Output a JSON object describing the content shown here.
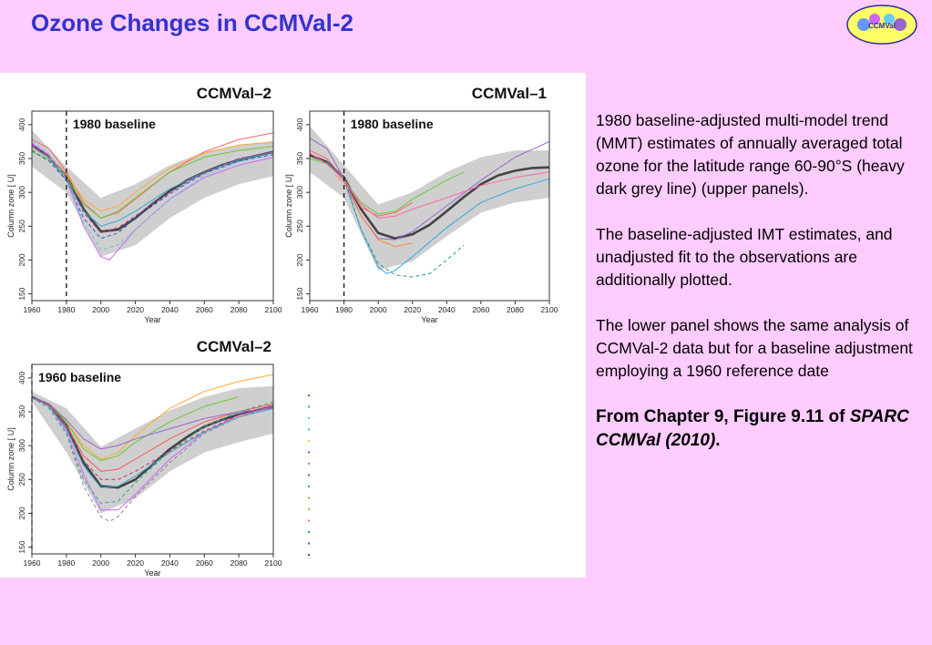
{
  "title": "Ozone Changes in CCMVal-2",
  "logo": {
    "text": "CCMVal",
    "icon": "ccmval-logo-icon",
    "color": "#2a2aa6",
    "fill": "#ffff66"
  },
  "description": {
    "p1": "1980 baseline-adjusted multi-model trend (MMT) estimates of annually averaged total ozone for the latitude range 60-90°S (heavy dark grey line) (upper panels).",
    "p2": "The baseline-adjusted IMT estimates, and unadjusted fit to the observations are additionally plotted.",
    "p3": "The lower panel shows the same analysis of CCMVal-2 data but for a baseline adjustment employing a 1960 reference date",
    "source_prefix": "From Chapter 9, Figure 9.11 of ",
    "source_ref": "SPARC CCMVal (2010)",
    "source_suffix": "."
  },
  "chart_data": [
    {
      "type": "line",
      "title": "CCMVal–2",
      "annotation": "1980 baseline",
      "baseline_year": 1980,
      "xlabel": "Year",
      "ylabel": "Column   zone [  U]",
      "xlim": [
        1960,
        2100
      ],
      "ylim": [
        140,
        420
      ],
      "xticks": [
        1960,
        1980,
        2000,
        2020,
        2040,
        2060,
        2080,
        2100
      ],
      "yticks": [
        150,
        200,
        250,
        300,
        350,
        400
      ],
      "band": {
        "x": [
          1960,
          1980,
          2000,
          2020,
          2040,
          2060,
          2080,
          2100
        ],
        "upper": [
          392,
          338,
          292,
          312,
          340,
          360,
          370,
          376
        ],
        "lower": [
          338,
          300,
          205,
          222,
          262,
          292,
          312,
          324
        ]
      },
      "series": [
        {
          "name": "MMT",
          "color": "#444444",
          "width": 2.6,
          "x": [
            1960,
            1970,
            1980,
            1990,
            2000,
            2010,
            2020,
            2030,
            2040,
            2050,
            2060,
            2070,
            2080,
            2090,
            2100
          ],
          "y": [
            370,
            352,
            325,
            275,
            242,
            245,
            262,
            283,
            302,
            318,
            330,
            340,
            348,
            354,
            360
          ]
        },
        {
          "color": "#ff6666",
          "width": 1,
          "x": [
            1960,
            1970,
            1980,
            1990,
            2000,
            2010,
            2020,
            2040,
            2060,
            2080,
            2100
          ],
          "y": [
            378,
            365,
            330,
            285,
            262,
            270,
            290,
            330,
            360,
            378,
            388
          ]
        },
        {
          "color": "#cc66ff",
          "width": 1,
          "x": [
            1960,
            1970,
            1980,
            1990,
            2000,
            2005,
            2010,
            2020,
            2040,
            2060,
            2080,
            2100
          ],
          "y": [
            372,
            355,
            320,
            250,
            205,
            200,
            215,
            245,
            290,
            322,
            340,
            352
          ]
        },
        {
          "color": "#66cc33",
          "width": 1,
          "x": [
            1960,
            1970,
            1980,
            1990,
            2000,
            2010,
            2020,
            2040,
            2060,
            2080,
            2100
          ],
          "y": [
            360,
            348,
            322,
            282,
            262,
            272,
            292,
            330,
            352,
            362,
            368
          ]
        },
        {
          "color": "#ffaa33",
          "width": 1,
          "x": [
            1960,
            1970,
            1980,
            1990,
            2000,
            2010,
            2020,
            2040,
            2060,
            2080,
            2100
          ],
          "y": [
            365,
            352,
            326,
            290,
            272,
            280,
            300,
            336,
            358,
            370,
            374
          ]
        },
        {
          "color": "#33aacc",
          "width": 1,
          "x": [
            1960,
            1970,
            1980,
            1990,
            2000,
            2010,
            2020,
            2040,
            2060,
            2080,
            2100
          ],
          "y": [
            368,
            350,
            318,
            272,
            250,
            258,
            272,
            305,
            330,
            348,
            360
          ]
        },
        {
          "color": "#3355cc",
          "width": 1,
          "dash": "4,3",
          "x": [
            1960,
            1970,
            1980,
            1990,
            2000,
            2010,
            2020,
            2040,
            2060,
            2080,
            2100
          ],
          "y": [
            362,
            346,
            318,
            262,
            232,
            240,
            262,
            298,
            328,
            346,
            356
          ]
        },
        {
          "color": "#66cccc",
          "width": 1,
          "dash": "4,3",
          "x": [
            1960,
            1970,
            1980,
            1990,
            2000,
            2010,
            2020,
            2040,
            2060,
            2080,
            2100
          ],
          "y": [
            375,
            356,
            322,
            255,
            215,
            222,
            245,
            290,
            325,
            345,
            358
          ]
        },
        {
          "color": "#cc3399",
          "width": 1,
          "dash": "4,3",
          "x": [
            1960,
            1970,
            1980,
            1990,
            2000,
            2010,
            2020,
            2040,
            2060,
            2080,
            2100
          ],
          "y": [
            370,
            352,
            322,
            270,
            240,
            248,
            265,
            300,
            330,
            350,
            360
          ]
        }
      ]
    },
    {
      "type": "line",
      "title": "CCMVal–1",
      "annotation": "1980 baseline",
      "baseline_year": 1980,
      "xlabel": "Year",
      "ylabel": "Column   zone [  U]",
      "xlim": [
        1960,
        2100
      ],
      "ylim": [
        140,
        420
      ],
      "xticks": [
        1960,
        1980,
        2000,
        2020,
        2040,
        2060,
        2080,
        2100
      ],
      "yticks": [
        150,
        200,
        250,
        300,
        350,
        400
      ],
      "band": {
        "x": [
          1960,
          1980,
          2000,
          2020,
          2040,
          2060,
          2080,
          2100
        ],
        "upper": [
          398,
          340,
          282,
          300,
          330,
          352,
          362,
          362
        ],
        "lower": [
          330,
          292,
          185,
          198,
          235,
          270,
          285,
          292
        ]
      },
      "series": [
        {
          "name": "MMT",
          "color": "#444444",
          "width": 2.6,
          "x": [
            1960,
            1970,
            1980,
            1990,
            2000,
            2010,
            2020,
            2030,
            2040,
            2050,
            2060,
            2070,
            2080,
            2090,
            2100
          ],
          "y": [
            355,
            345,
            322,
            275,
            240,
            232,
            238,
            252,
            272,
            293,
            312,
            325,
            332,
            336,
            337
          ]
        },
        {
          "color": "#ff6666",
          "width": 1,
          "x": [
            1960,
            1970,
            1980,
            1990,
            2000,
            2010,
            2020
          ],
          "y": [
            362,
            350,
            320,
            278,
            265,
            270,
            285
          ]
        },
        {
          "color": "#9966cc",
          "width": 1,
          "x": [
            1960,
            1970,
            1980,
            1990,
            2000,
            2010,
            2020,
            2040,
            2060,
            2080,
            2100
          ],
          "y": [
            380,
            365,
            320,
            265,
            232,
            230,
            242,
            280,
            318,
            352,
            375
          ]
        },
        {
          "color": "#66cc33",
          "width": 1,
          "x": [
            1960,
            1970,
            1980,
            1990,
            2000,
            2010,
            2020,
            2040,
            2050
          ],
          "y": [
            350,
            342,
            318,
            285,
            268,
            272,
            290,
            318,
            330
          ]
        },
        {
          "color": "#33aadd",
          "width": 1,
          "x": [
            1970,
            1980,
            1990,
            2000,
            2005,
            2010,
            2020,
            2040,
            2060,
            2080,
            2100
          ],
          "y": [
            345,
            318,
            245,
            190,
            180,
            185,
            205,
            248,
            285,
            305,
            320
          ]
        },
        {
          "color": "#ff8844",
          "width": 1,
          "x": [
            1975,
            1980,
            1990,
            2000,
            2010,
            2020
          ],
          "y": [
            325,
            315,
            265,
            230,
            220,
            225
          ]
        },
        {
          "color": "#339999",
          "width": 1,
          "dash": "4,3",
          "x": [
            1980,
            1990,
            2000,
            2010,
            2020,
            2030,
            2040,
            2050
          ],
          "y": [
            322,
            245,
            195,
            178,
            175,
            180,
            200,
            222
          ]
        },
        {
          "color": "#ff66aa",
          "width": 1,
          "x": [
            1960,
            1970,
            1980,
            1990,
            2000,
            2010,
            2020,
            2040,
            2060,
            2080,
            2100
          ],
          "y": [
            358,
            342,
            318,
            282,
            262,
            265,
            275,
            292,
            310,
            322,
            330
          ]
        }
      ]
    },
    {
      "type": "line",
      "title": "CCMVal–2",
      "annotation": "1960 baseline",
      "baseline_year": 1960,
      "xlabel": "Year",
      "ylabel": "Column   zone [  U]",
      "xlim": [
        1960,
        2100
      ],
      "ylim": [
        140,
        420
      ],
      "xticks": [
        1960,
        1980,
        2000,
        2020,
        2040,
        2060,
        2080,
        2100
      ],
      "yticks": [
        150,
        200,
        250,
        300,
        350,
        400
      ],
      "band": {
        "x": [
          1960,
          1980,
          2000,
          2020,
          2040,
          2060,
          2080,
          2100
        ],
        "upper": [
          380,
          355,
          298,
          325,
          352,
          372,
          385,
          388
        ],
        "lower": [
          365,
          290,
          200,
          222,
          262,
          290,
          305,
          318
        ]
      },
      "series": [
        {
          "name": "MMT",
          "color": "#444444",
          "width": 2.6,
          "x": [
            1960,
            1970,
            1980,
            1990,
            2000,
            2010,
            2020,
            2030,
            2040,
            2050,
            2060,
            2070,
            2080,
            2090,
            2100
          ],
          "y": [
            372,
            360,
            330,
            275,
            240,
            238,
            250,
            272,
            295,
            313,
            328,
            338,
            346,
            352,
            358
          ]
        },
        {
          "color": "#ffaa33",
          "width": 1,
          "x": [
            1960,
            1970,
            1980,
            1990,
            2000,
            2010,
            2020,
            2040,
            2060,
            2080,
            2100
          ],
          "y": [
            372,
            362,
            335,
            300,
            280,
            290,
            315,
            355,
            380,
            395,
            405
          ]
        },
        {
          "color": "#66cc33",
          "width": 1,
          "x": [
            1960,
            1970,
            1980,
            1990,
            2000,
            2010,
            2020,
            2040,
            2060,
            2080
          ],
          "y": [
            372,
            362,
            335,
            295,
            278,
            285,
            305,
            335,
            358,
            372
          ]
        },
        {
          "color": "#cc66ff",
          "width": 1,
          "x": [
            1960,
            1970,
            1980,
            1990,
            2000,
            2010,
            2020,
            2040,
            2060,
            2080,
            2100
          ],
          "y": [
            372,
            358,
            322,
            258,
            205,
            205,
            228,
            280,
            320,
            345,
            358
          ]
        },
        {
          "color": "#ff5555",
          "width": 1,
          "x": [
            1960,
            1970,
            1980,
            1990,
            2000,
            2010,
            2020,
            2040,
            2060,
            2080,
            2100
          ],
          "y": [
            372,
            360,
            330,
            285,
            262,
            265,
            280,
            310,
            335,
            350,
            362
          ]
        },
        {
          "color": "#33aacc",
          "width": 1,
          "x": [
            1960,
            1970,
            1980,
            1990,
            2000,
            2010,
            2020,
            2040,
            2060,
            2080,
            2100
          ],
          "y": [
            372,
            358,
            325,
            270,
            238,
            240,
            255,
            290,
            320,
            342,
            355
          ]
        },
        {
          "color": "#9966cc",
          "width": 1,
          "x": [
            1960,
            1970,
            1980,
            1990,
            2000,
            2010,
            2020,
            2040,
            2060,
            2080,
            2100
          ],
          "y": [
            372,
            362,
            338,
            310,
            295,
            300,
            310,
            325,
            340,
            350,
            355
          ]
        },
        {
          "color": "#888888",
          "width": 1,
          "dash": "4,3",
          "x": [
            1960,
            1970,
            1980,
            1990,
            2000,
            2005,
            2010,
            2020,
            2040,
            2060,
            2080,
            2100
          ],
          "y": [
            372,
            355,
            318,
            240,
            195,
            188,
            195,
            225,
            275,
            318,
            342,
            358
          ]
        },
        {
          "color": "#33aa88",
          "width": 1,
          "dash": "4,3",
          "x": [
            1960,
            1970,
            1980,
            1990,
            2000,
            2010,
            2020,
            2040,
            2060,
            2080,
            2100
          ],
          "y": [
            372,
            355,
            318,
            250,
            215,
            218,
            245,
            292,
            328,
            350,
            365
          ]
        },
        {
          "color": "#cc3366",
          "width": 1,
          "dash": "4,3",
          "x": [
            1960,
            1970,
            1980,
            1990,
            2000,
            2010,
            2020,
            2040,
            2060,
            2080,
            2100
          ],
          "y": [
            372,
            360,
            330,
            278,
            250,
            250,
            262,
            292,
            322,
            345,
            360
          ]
        }
      ]
    }
  ],
  "legend_markers": [
    "#3366cc",
    "#33aa88",
    "#66cccc",
    "#33cc66",
    "#ffcc33",
    "#cc3399",
    "#cc66ff",
    "#9933cc",
    "#3399cc",
    "#66cc33",
    "#ff9933",
    "#ff6666",
    "#33aa55",
    "#3355cc",
    "#663399"
  ]
}
